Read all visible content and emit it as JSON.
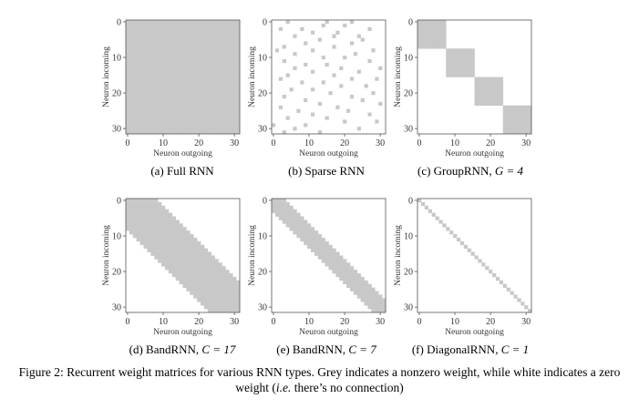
{
  "chart_data": [
    {
      "type": "heatmap",
      "panel_label": "(a)",
      "caption": "Full RNN",
      "kind": "full",
      "xlabel": "Neuron outgoing",
      "ylabel": "Neuron incoming",
      "x_ticks": [
        "0",
        "10",
        "20",
        "30"
      ],
      "y_ticks": [
        "0",
        "10",
        "20",
        "30"
      ],
      "size": 32,
      "nonzero_color": "#c8c8c8",
      "zero_color": "#ffffff"
    },
    {
      "type": "heatmap",
      "panel_label": "(b)",
      "caption": "Sparse RNN",
      "kind": "sparse",
      "xlabel": "Neuron outgoing",
      "ylabel": "Neuron incoming",
      "x_ticks": [
        "0",
        "10",
        "20",
        "30"
      ],
      "y_ticks": [
        "0",
        "10",
        "20",
        "30"
      ],
      "size": 32,
      "nonzero_color": "#c8c8c8",
      "zero_color": "#ffffff",
      "nonzero_cells": [
        [
          0,
          4
        ],
        [
          0,
          15
        ],
        [
          0,
          22
        ],
        [
          1,
          14
        ],
        [
          1,
          20
        ],
        [
          2,
          2
        ],
        [
          2,
          8
        ],
        [
          2,
          27
        ],
        [
          3,
          11
        ],
        [
          3,
          18
        ],
        [
          4,
          6
        ],
        [
          4,
          17
        ],
        [
          4,
          24
        ],
        [
          5,
          13
        ],
        [
          5,
          25
        ],
        [
          6,
          9
        ],
        [
          6,
          22
        ],
        [
          7,
          3
        ],
        [
          7,
          17
        ],
        [
          8,
          1
        ],
        [
          8,
          11
        ],
        [
          8,
          28
        ],
        [
          9,
          6
        ],
        [
          9,
          23
        ],
        [
          10,
          14
        ],
        [
          10,
          20
        ],
        [
          11,
          3
        ],
        [
          11,
          27
        ],
        [
          12,
          9
        ],
        [
          12,
          15
        ],
        [
          13,
          6
        ],
        [
          13,
          19
        ],
        [
          13,
          30
        ],
        [
          14,
          11
        ],
        [
          14,
          24
        ],
        [
          15,
          4
        ],
        [
          15,
          17
        ],
        [
          16,
          2
        ],
        [
          16,
          22
        ],
        [
          16,
          29
        ],
        [
          17,
          8
        ],
        [
          17,
          14
        ],
        [
          18,
          19
        ],
        [
          18,
          26
        ],
        [
          19,
          5
        ],
        [
          19,
          11
        ],
        [
          20,
          16
        ],
        [
          20,
          28
        ],
        [
          21,
          3
        ],
        [
          21,
          22
        ],
        [
          22,
          9
        ],
        [
          22,
          25
        ],
        [
          23,
          13
        ],
        [
          23,
          30
        ],
        [
          24,
          2
        ],
        [
          24,
          18
        ],
        [
          25,
          7
        ],
        [
          25,
          21
        ],
        [
          26,
          11
        ],
        [
          26,
          27
        ],
        [
          27,
          4
        ],
        [
          27,
          15
        ],
        [
          28,
          20
        ],
        [
          28,
          29
        ],
        [
          29,
          0
        ],
        [
          29,
          9
        ],
        [
          30,
          6
        ],
        [
          30,
          24
        ],
        [
          31,
          3
        ],
        [
          31,
          13
        ]
      ]
    },
    {
      "type": "heatmap",
      "panel_label": "(c)",
      "caption": "GroupRNN,",
      "param": "G = 4",
      "kind": "group",
      "G": 4,
      "xlabel": "Neuron outgoing",
      "ylabel": "Neuron incoming",
      "x_ticks": [
        "0",
        "10",
        "20",
        "30"
      ],
      "y_ticks": [
        "0",
        "10",
        "20",
        "30"
      ],
      "size": 32,
      "nonzero_color": "#c8c8c8",
      "zero_color": "#ffffff"
    },
    {
      "type": "heatmap",
      "panel_label": "(d)",
      "caption": "BandRNN,",
      "param": "C = 17",
      "kind": "band",
      "C": 17,
      "xlabel": "Neuron outgoing",
      "ylabel": "Neuron incoming",
      "x_ticks": [
        "0",
        "10",
        "20",
        "30"
      ],
      "y_ticks": [
        "0",
        "10",
        "20",
        "30"
      ],
      "size": 32,
      "nonzero_color": "#c8c8c8",
      "zero_color": "#ffffff"
    },
    {
      "type": "heatmap",
      "panel_label": "(e)",
      "caption": "BandRNN,",
      "param": "C = 7",
      "kind": "band",
      "C": 7,
      "xlabel": "Neuron outgoing",
      "ylabel": "Neuron incoming",
      "x_ticks": [
        "0",
        "10",
        "20",
        "30"
      ],
      "y_ticks": [
        "0",
        "10",
        "20",
        "30"
      ],
      "size": 32,
      "nonzero_color": "#c8c8c8",
      "zero_color": "#ffffff"
    },
    {
      "type": "heatmap",
      "panel_label": "(f)",
      "caption": "DiagonalRNN,",
      "param": "C = 1",
      "kind": "band",
      "C": 1,
      "xlabel": "Neuron outgoing",
      "ylabel": "Neuron incoming",
      "x_ticks": [
        "0",
        "10",
        "20",
        "30"
      ],
      "y_ticks": [
        "0",
        "10",
        "20",
        "30"
      ],
      "size": 32,
      "nonzero_color": "#c8c8c8",
      "zero_color": "#ffffff"
    }
  ],
  "figure_caption": {
    "part1": "Figure 2: Recurrent weight matrices for various RNN types. Grey indicates a nonzero weight, while white indicates a zero weight (",
    "ie": "i.e.",
    "part2": " there’s no connection)"
  }
}
